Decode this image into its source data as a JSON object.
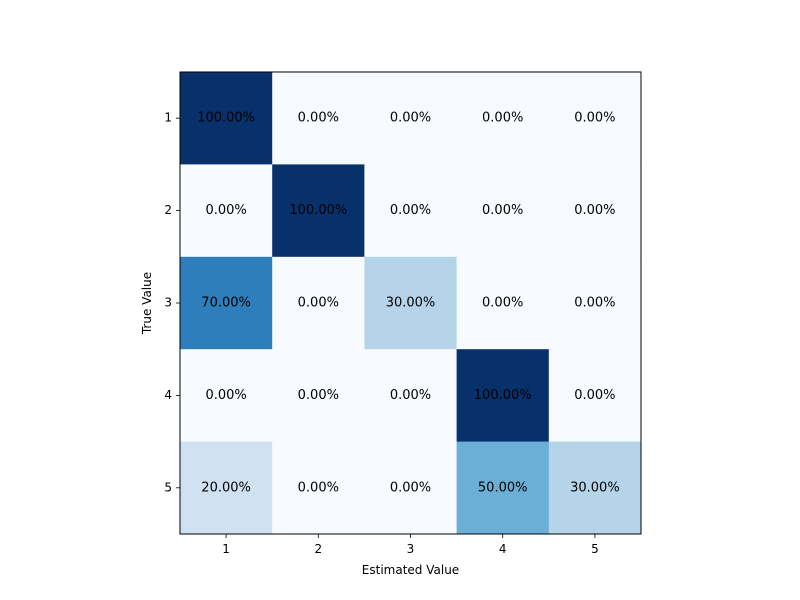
{
  "chart_data": {
    "type": "heatmap",
    "title": "",
    "xlabel": "Estimated Value",
    "ylabel": "True Value",
    "x_categories": [
      "1",
      "2",
      "3",
      "4",
      "5"
    ],
    "y_categories": [
      "1",
      "2",
      "3",
      "4",
      "5"
    ],
    "values": [
      [
        100,
        0,
        0,
        0,
        0
      ],
      [
        0,
        100,
        0,
        0,
        0
      ],
      [
        70,
        0,
        30,
        0,
        0
      ],
      [
        0,
        0,
        0,
        100,
        0
      ],
      [
        20,
        0,
        0,
        50,
        30
      ]
    ],
    "cell_labels": [
      [
        "100.00%",
        "0.00%",
        "0.00%",
        "0.00%",
        "0.00%"
      ],
      [
        "0.00%",
        "100.00%",
        "0.00%",
        "0.00%",
        "0.00%"
      ],
      [
        "70.00%",
        "0.00%",
        "30.00%",
        "0.00%",
        "0.00%"
      ],
      [
        "0.00%",
        "0.00%",
        "0.00%",
        "100.00%",
        "0.00%"
      ],
      [
        "20.00%",
        "0.00%",
        "0.00%",
        "50.00%",
        "30.00%"
      ]
    ],
    "value_range": [
      0,
      100
    ],
    "colormap": "Blues",
    "grid": false
  }
}
